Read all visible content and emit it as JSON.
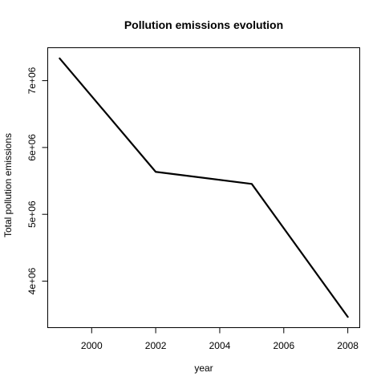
{
  "chart_data": {
    "type": "line",
    "title": "Pollution emissions evolution",
    "xlabel": "year",
    "ylabel": "Total pollution emissions",
    "x": [
      1999,
      2002,
      2005,
      2008
    ],
    "series": [
      {
        "values": [
          7332967,
          5635780,
          5454703,
          3464206
        ]
      }
    ],
    "xlim": [
      1998.64,
      2008.36
    ],
    "ylim": [
      3310000,
      7487000
    ],
    "xticks": [
      {
        "value": 2000,
        "label": "2000"
      },
      {
        "value": 2002,
        "label": "2002"
      },
      {
        "value": 2004,
        "label": "2004"
      },
      {
        "value": 2006,
        "label": "2006"
      },
      {
        "value": 2008,
        "label": "2008"
      }
    ],
    "yticks": [
      {
        "value": 4000000,
        "label": "4e+06"
      },
      {
        "value": 5000000,
        "label": "5e+06"
      },
      {
        "value": 6000000,
        "label": "6e+06"
      },
      {
        "value": 7000000,
        "label": "7e+06"
      }
    ],
    "grid": false,
    "line_color": "#000000"
  }
}
